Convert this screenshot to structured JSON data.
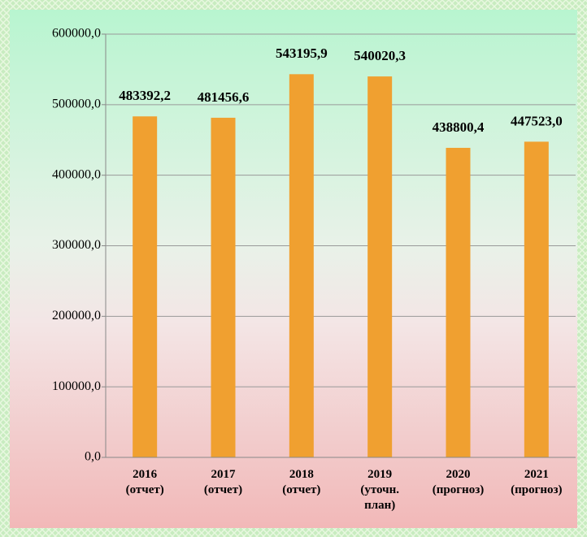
{
  "chart_data": {
    "type": "bar",
    "categories": [
      "2016 (отчет)",
      "2017 (отчет)",
      "2018 (отчет)",
      "2019 (уточн. план)",
      "2020 (прогноз)",
      "2021 (прогноз)"
    ],
    "values": [
      483392.2,
      481456.6,
      543195.9,
      540020.3,
      438800.4,
      447523.0
    ],
    "value_labels": [
      "483392,2",
      "481456,6",
      "543195,9",
      "540020,3",
      "438800,4",
      "447523,0"
    ],
    "color": "#f0a030",
    "ylim": [
      0,
      600000
    ],
    "yticks": [
      {
        "value": 0,
        "label": "0,0"
      },
      {
        "value": 100000,
        "label": "100000,0"
      },
      {
        "value": 200000,
        "label": "200000,0"
      },
      {
        "value": 300000,
        "label": "300000,0"
      },
      {
        "value": 400000,
        "label": "400000,0"
      },
      {
        "value": 500000,
        "label": "500000,0"
      },
      {
        "value": 600000,
        "label": "600000,0"
      }
    ],
    "grid": true
  }
}
